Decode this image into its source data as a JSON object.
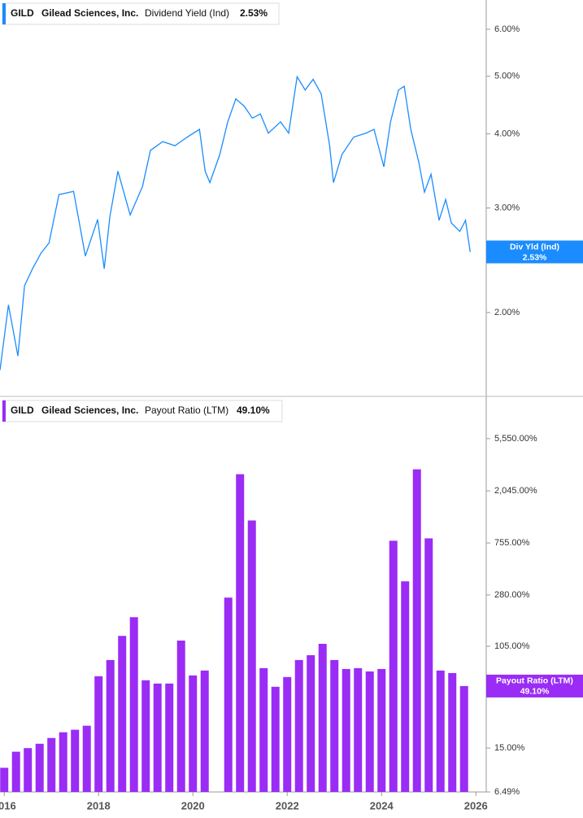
{
  "chart_data": [
    {
      "type": "line",
      "ticker": "GILD",
      "company": "Gilead Sciences, Inc.",
      "metric": "Dividend Yield (Ind)",
      "current_label": "2.53%",
      "tag": "Div Yld (Ind)",
      "log_scale": true,
      "x": [
        2015.91,
        2016.09,
        2016.29,
        2016.43,
        2016.6,
        2016.78,
        2016.95,
        2017.16,
        2017.47,
        2017.72,
        2017.98,
        2018.12,
        2018.24,
        2018.41,
        2018.67,
        2018.93,
        2019.1,
        2019.36,
        2019.62,
        2019.88,
        2020.14,
        2020.26,
        2020.36,
        2020.57,
        2020.74,
        2020.91,
        2021.09,
        2021.26,
        2021.43,
        2021.6,
        2021.86,
        2022.03,
        2022.21,
        2022.38,
        2022.55,
        2022.72,
        2022.9,
        2022.98,
        2023.16,
        2023.41,
        2023.67,
        2023.84,
        2023.93,
        2024.05,
        2024.19,
        2024.36,
        2024.48,
        2024.62,
        2024.79,
        2024.91,
        2025.05,
        2025.22,
        2025.36,
        2025.48,
        2025.66,
        2025.78,
        2025.88
      ],
      "series": [
        {
          "name": "Dividend Yield (Ind)",
          "color": "#1a8cff",
          "values": [
            1.6,
            2.06,
            1.69,
            2.22,
            2.37,
            2.52,
            2.62,
            3.16,
            3.2,
            2.49,
            2.87,
            2.37,
            2.9,
            3.46,
            2.92,
            3.26,
            3.75,
            3.88,
            3.82,
            3.95,
            4.07,
            3.46,
            3.31,
            3.69,
            4.19,
            4.58,
            4.45,
            4.25,
            4.32,
            4.01,
            4.19,
            4.01,
            4.99,
            4.74,
            4.94,
            4.67,
            3.82,
            3.31,
            3.69,
            3.95,
            4.01,
            4.07,
            3.82,
            3.52,
            4.19,
            4.74,
            4.81,
            4.07,
            3.58,
            3.19,
            3.42,
            2.86,
            3.1,
            2.83,
            2.74,
            2.86,
            2.53
          ]
        }
      ],
      "xlim": [
        2015.91,
        2026.22
      ],
      "ylim": [
        1.445,
        6.72
      ],
      "yticks": [
        {
          "value": 2,
          "label": "2.00%"
        },
        {
          "value": 3,
          "label": "3.00%"
        },
        {
          "value": 4,
          "label": "4.00%"
        },
        {
          "value": 5,
          "label": "5.00%"
        },
        {
          "value": 6,
          "label": "6.00%"
        }
      ]
    },
    {
      "type": "bar",
      "ticker": "GILD",
      "company": "Gilead Sciences, Inc.",
      "metric": "Payout Ratio (LTM)",
      "current_label": "49.10%",
      "tag": "Payout Ratio (LTM)",
      "log_scale": true,
      "x": [
        2016,
        2016.25,
        2016.5,
        2016.75,
        2017,
        2017.25,
        2017.5,
        2017.75,
        2018,
        2018.25,
        2018.5,
        2018.75,
        2019,
        2019.25,
        2019.5,
        2019.75,
        2020,
        2020.25,
        2020.75,
        2021,
        2021.25,
        2021.5,
        2021.75,
        2022,
        2022.25,
        2022.5,
        2022.75,
        2023,
        2023.25,
        2023.5,
        2023.75,
        2024,
        2024.25,
        2024.5,
        2024.75,
        2025,
        2025.25,
        2025.5,
        2025.75
      ],
      "series": [
        {
          "name": "Payout Ratio (LTM)",
          "color": "#9a2cf5",
          "values": [
            10.3,
            14,
            15,
            16.3,
            18.2,
            20.3,
            21.3,
            23,
            59.2,
            80.7,
            128,
            183,
            54.8,
            51.5,
            51.5,
            117,
            60.1,
            66,
            266,
            2810,
            1161,
            69.1,
            48.4,
            58.3,
            80.7,
            88.5,
            110,
            80.7,
            68,
            69.1,
            64.9,
            68,
            788,
            363,
            3085,
            825,
            66,
            62.9,
            49.1
          ]
        }
      ],
      "xlim": [
        2015.91,
        2026.22
      ],
      "ylim": [
        6.49,
        12430
      ],
      "xticks": [
        2016,
        2018,
        2020,
        2022,
        2024,
        2026
      ],
      "yticks": [
        {
          "value": 6.49,
          "label": "6.49%"
        },
        {
          "value": 15,
          "label": "15.00%"
        },
        {
          "value": 105,
          "label": "105.00%"
        },
        {
          "value": 280,
          "label": "280.00%"
        },
        {
          "value": 755,
          "label": "755.00%"
        },
        {
          "value": 2045,
          "label": "2,045.00%"
        },
        {
          "value": 5550,
          "label": "5,550.00%"
        }
      ]
    }
  ]
}
